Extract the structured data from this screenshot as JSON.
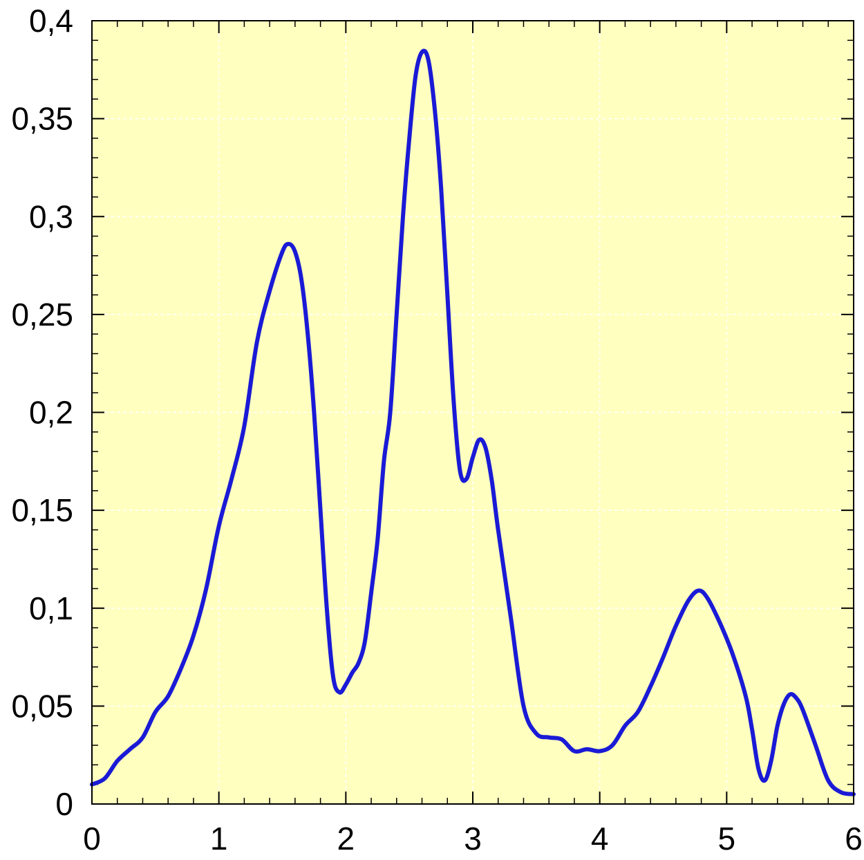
{
  "chart_data": {
    "type": "line",
    "title": "",
    "xlabel": "",
    "ylabel": "",
    "xlim": [
      0,
      6
    ],
    "ylim": [
      0,
      0.4
    ],
    "grid": true,
    "x_ticks": [
      "0",
      "1",
      "2",
      "3",
      "4",
      "5",
      "6"
    ],
    "y_ticks": [
      "0",
      "0,05",
      "0,1",
      "0,15",
      "0,2",
      "0,25",
      "0,3",
      "0,35",
      "0,4"
    ],
    "colors": {
      "plot_background": "#ffffc0",
      "series": "#1a1ad6",
      "grid": "#ffffff"
    },
    "series": [
      {
        "values": [
          [
            0.0,
            0.01
          ],
          [
            0.1,
            0.013
          ],
          [
            0.2,
            0.022
          ],
          [
            0.3,
            0.028
          ],
          [
            0.4,
            0.034
          ],
          [
            0.5,
            0.047
          ],
          [
            0.6,
            0.055
          ],
          [
            0.7,
            0.069
          ],
          [
            0.8,
            0.086
          ],
          [
            0.9,
            0.11
          ],
          [
            1.0,
            0.142
          ],
          [
            1.1,
            0.166
          ],
          [
            1.2,
            0.193
          ],
          [
            1.3,
            0.236
          ],
          [
            1.4,
            0.262
          ],
          [
            1.5,
            0.282
          ],
          [
            1.55,
            0.286
          ],
          [
            1.6,
            0.282
          ],
          [
            1.65,
            0.268
          ],
          [
            1.7,
            0.24
          ],
          [
            1.75,
            0.2
          ],
          [
            1.8,
            0.15
          ],
          [
            1.85,
            0.1
          ],
          [
            1.9,
            0.065
          ],
          [
            1.95,
            0.057
          ],
          [
            2.0,
            0.061
          ],
          [
            2.05,
            0.067
          ],
          [
            2.1,
            0.072
          ],
          [
            2.15,
            0.083
          ],
          [
            2.2,
            0.108
          ],
          [
            2.25,
            0.135
          ],
          [
            2.3,
            0.175
          ],
          [
            2.35,
            0.2
          ],
          [
            2.4,
            0.25
          ],
          [
            2.45,
            0.3
          ],
          [
            2.5,
            0.34
          ],
          [
            2.55,
            0.372
          ],
          [
            2.6,
            0.384
          ],
          [
            2.65,
            0.38
          ],
          [
            2.7,
            0.355
          ],
          [
            2.75,
            0.315
          ],
          [
            2.8,
            0.26
          ],
          [
            2.85,
            0.205
          ],
          [
            2.9,
            0.17
          ],
          [
            2.95,
            0.166
          ],
          [
            3.0,
            0.177
          ],
          [
            3.05,
            0.186
          ],
          [
            3.1,
            0.182
          ],
          [
            3.15,
            0.165
          ],
          [
            3.2,
            0.14
          ],
          [
            3.3,
            0.095
          ],
          [
            3.4,
            0.05
          ],
          [
            3.5,
            0.036
          ],
          [
            3.6,
            0.034
          ],
          [
            3.7,
            0.033
          ],
          [
            3.8,
            0.027
          ],
          [
            3.9,
            0.028
          ],
          [
            4.0,
            0.027
          ],
          [
            4.1,
            0.03
          ],
          [
            4.2,
            0.04
          ],
          [
            4.3,
            0.047
          ],
          [
            4.4,
            0.06
          ],
          [
            4.5,
            0.075
          ],
          [
            4.6,
            0.091
          ],
          [
            4.7,
            0.104
          ],
          [
            4.78,
            0.109
          ],
          [
            4.85,
            0.105
          ],
          [
            4.95,
            0.092
          ],
          [
            5.05,
            0.076
          ],
          [
            5.15,
            0.055
          ],
          [
            5.2,
            0.038
          ],
          [
            5.25,
            0.018
          ],
          [
            5.3,
            0.012
          ],
          [
            5.35,
            0.022
          ],
          [
            5.4,
            0.04
          ],
          [
            5.45,
            0.051
          ],
          [
            5.5,
            0.056
          ],
          [
            5.55,
            0.054
          ],
          [
            5.6,
            0.048
          ],
          [
            5.7,
            0.03
          ],
          [
            5.8,
            0.012
          ],
          [
            5.9,
            0.006
          ],
          [
            6.0,
            0.005
          ]
        ]
      }
    ]
  }
}
